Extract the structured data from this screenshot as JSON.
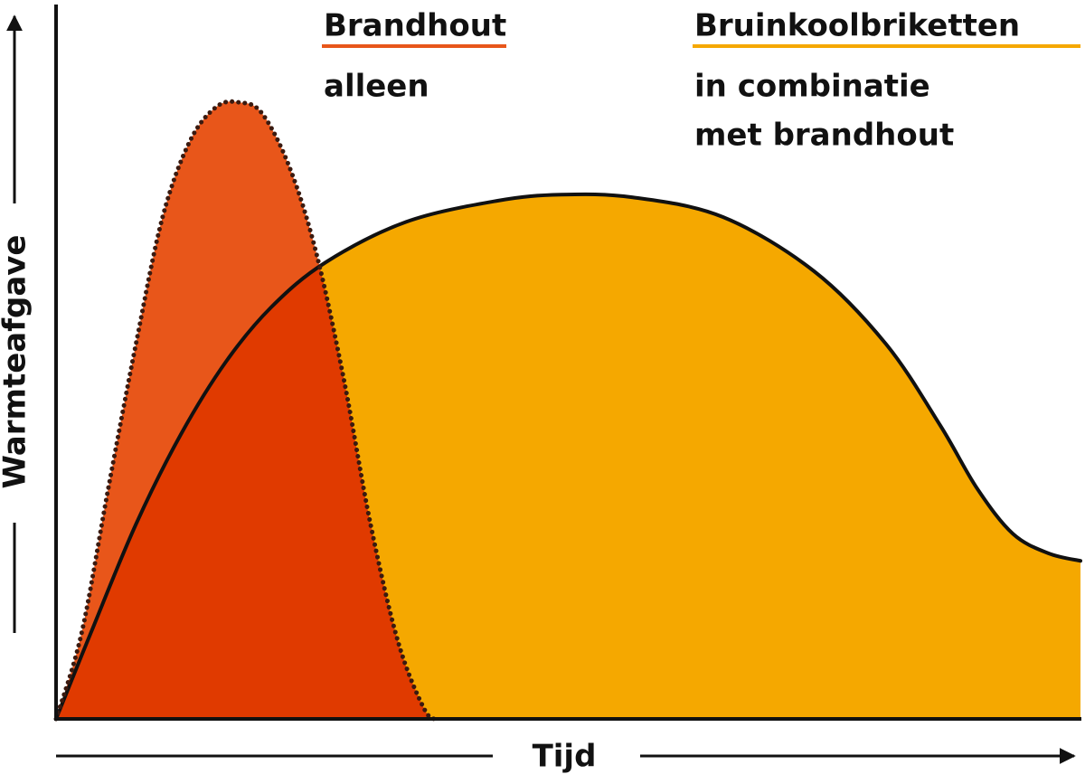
{
  "chart_data": {
    "type": "area",
    "x_label": "Tijd",
    "y_label": "Warmteafgave",
    "xlim": [
      0,
      100
    ],
    "ylim": [
      0,
      100
    ],
    "series": [
      {
        "name": "Bruinkoolbriketten",
        "description": [
          "in combinatie",
          "met brandhout"
        ],
        "color": "#f5a800",
        "line_color": "#111111",
        "line_style": "solid",
        "x": [
          0,
          3.4,
          7.8,
          12.2,
          16.6,
          21.0,
          26.3,
          34.2,
          43.1,
          49.3,
          56.3,
          65.1,
          74.0,
          81.0,
          86.3,
          89.9,
          93.4,
          96.9,
          100
        ],
        "values": [
          0,
          12.7,
          28.7,
          42.0,
          52.7,
          60.7,
          67.3,
          73.3,
          76.4,
          77.3,
          76.9,
          74.0,
          66.0,
          55.3,
          43.3,
          34.0,
          27.3,
          24.4,
          23.3
        ]
      },
      {
        "name": "Brandhout",
        "description": [
          "alleen"
        ],
        "color": "#e8561a",
        "overlap_color": "#e03a00",
        "line_color": "#3a1a10",
        "line_style": "dotted",
        "x": [
          0,
          2.5,
          5.1,
          7.8,
          10.4,
          13.1,
          15.7,
          17.9,
          20.1,
          22.8,
          25.4,
          28.1,
          30.7,
          33.4,
          36.0,
          37.3
        ],
        "values": [
          0,
          12.7,
          34.0,
          55.3,
          74.0,
          85.3,
          90.3,
          90.9,
          89.3,
          81.3,
          68.7,
          50.0,
          28.7,
          11.3,
          1.3,
          0
        ]
      }
    ]
  }
}
